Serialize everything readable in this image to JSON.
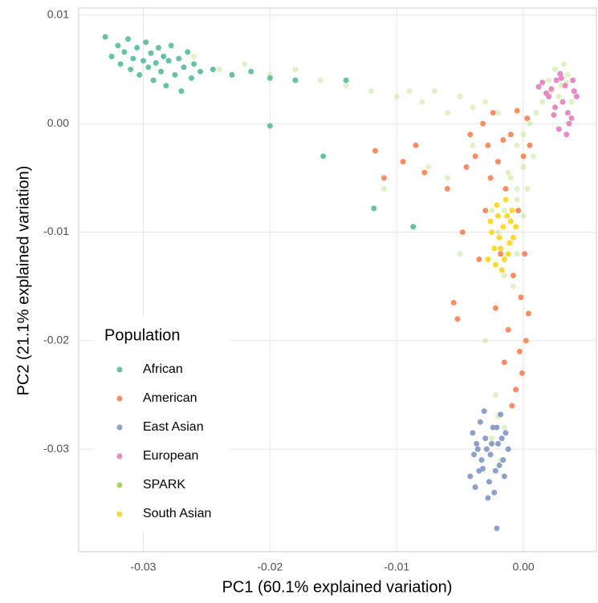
{
  "chart_data": {
    "type": "scatter",
    "x_label": "PC1 (60.1% explained variation)",
    "y_label": "PC2 (21.1% explained variation)",
    "xlim": [
      -0.0351,
      0.00576
    ],
    "ylim": [
      -0.03945,
      0.01066
    ],
    "xticks": [
      -0.03,
      -0.02,
      -0.01,
      {
        "value": 0,
        "label": "0.00"
      }
    ],
    "yticks": [
      0.01,
      {
        "value": 0,
        "label": "0.00"
      },
      -0.01,
      -0.02,
      -0.03
    ],
    "grid": true,
    "legend_title": "Population",
    "legend_position": "bottom-left",
    "series": [
      {
        "name": "African",
        "color": "#66c2a5",
        "alpha": 1,
        "x": [
          -0.033,
          -0.0325,
          -0.032,
          -0.0318,
          -0.0315,
          -0.0312,
          -0.031,
          -0.0308,
          -0.0305,
          -0.0303,
          -0.03,
          -0.0298,
          -0.0296,
          -0.0294,
          -0.0292,
          -0.029,
          -0.0288,
          -0.0286,
          -0.0284,
          -0.0282,
          -0.028,
          -0.0278,
          -0.0275,
          -0.0272,
          -0.027,
          -0.0268,
          -0.0265,
          -0.0262,
          -0.026,
          -0.0255,
          -0.0245,
          -0.023,
          -0.0215,
          -0.02,
          -0.018,
          -0.014,
          -0.02,
          -0.0158,
          -0.0118,
          -0.0087
        ],
        "values": [
          0.008,
          0.0062,
          0.0072,
          0.0055,
          0.0066,
          0.0078,
          0.005,
          0.006,
          0.007,
          0.0045,
          0.0058,
          0.0075,
          0.0052,
          0.0065,
          0.004,
          0.0056,
          0.007,
          0.0048,
          0.0062,
          0.0035,
          0.0058,
          0.0072,
          0.0045,
          0.006,
          0.003,
          0.0052,
          0.0066,
          0.0042,
          0.0055,
          0.0048,
          0.005,
          0.0045,
          0.0048,
          0.0042,
          0.004,
          0.004,
          -0.0002,
          -0.003,
          -0.0078,
          -0.0095
        ]
      },
      {
        "name": "American",
        "color": "#fc8d62",
        "alpha": 1,
        "x": [
          -0.0117,
          -0.011,
          -0.0095,
          -0.0085,
          -0.0078,
          -0.006,
          -0.0055,
          -0.0052,
          -0.0048,
          -0.0045,
          -0.0042,
          -0.0038,
          -0.0035,
          -0.0032,
          -0.003,
          -0.0028,
          -0.0026,
          -0.0024,
          -0.0022,
          -0.002,
          -0.0018,
          -0.0016,
          -0.0014,
          -0.0012,
          -0.001,
          -0.0008,
          -0.0006,
          -0.0005,
          -0.0004,
          -0.0003,
          -0.0002,
          -0.0001,
          0.0,
          0.0001,
          0.0002,
          0.0003,
          0.0004,
          -0.0015,
          -0.0009,
          0.0005
        ],
        "values": [
          -0.0025,
          -0.005,
          -0.0035,
          -0.002,
          -0.0045,
          -0.006,
          -0.0165,
          -0.018,
          -0.01,
          -0.004,
          -0.001,
          -0.003,
          -0.0125,
          0.0,
          -0.008,
          -0.002,
          -0.005,
          0.001,
          -0.017,
          -0.0035,
          -0.012,
          -0.0015,
          -0.006,
          -0.019,
          -0.001,
          -0.014,
          -0.0245,
          0.0012,
          -0.008,
          -0.021,
          -0.016,
          -0.023,
          -0.003,
          -0.012,
          -0.02,
          0.0005,
          -0.0175,
          -0.022,
          -0.026,
          -0.002
        ]
      },
      {
        "name": "East Asian",
        "color": "#8da0cb",
        "alpha": 1,
        "x": [
          -0.0042,
          -0.004,
          -0.0038,
          -0.0036,
          -0.0034,
          -0.0032,
          -0.003,
          -0.0028,
          -0.0026,
          -0.0024,
          -0.0022,
          -0.002,
          -0.0018,
          -0.0016,
          -0.0014,
          -0.0012,
          -0.0039,
          -0.0035,
          -0.0031,
          -0.0027,
          -0.0025,
          -0.0023,
          -0.0019,
          -0.0017,
          -0.0033,
          -0.0029,
          -0.0021,
          -0.0015,
          -0.0037,
          -0.0021
        ],
        "values": [
          -0.0325,
          -0.0285,
          -0.0335,
          -0.03,
          -0.0275,
          -0.0318,
          -0.029,
          -0.0345,
          -0.0305,
          -0.028,
          -0.032,
          -0.0295,
          -0.0268,
          -0.031,
          -0.0285,
          -0.03,
          -0.0305,
          -0.032,
          -0.0265,
          -0.033,
          -0.0295,
          -0.034,
          -0.0315,
          -0.029,
          -0.031,
          -0.03,
          -0.028,
          -0.0325,
          -0.0295,
          -0.0373
        ]
      },
      {
        "name": "European",
        "color": "#e78ac3",
        "alpha": 1,
        "x": [
          0.0015,
          0.002,
          0.0025,
          0.003,
          0.0035,
          0.004,
          0.0028,
          0.0033,
          0.0038,
          0.0022,
          0.0018,
          0.0026,
          0.0031,
          0.0036,
          0.0042,
          0.0012,
          0.0024,
          0.0029,
          0.0034,
          0.0039
        ],
        "values": [
          0.0038,
          0.0025,
          0.0015,
          0.0042,
          0.001,
          0.003,
          -0.0005,
          0.0035,
          0.0005,
          0.0032,
          0.0028,
          0.004,
          0.002,
          0.0,
          0.0025,
          0.0034,
          0.0008,
          0.0046,
          -0.001,
          0.004
        ]
      },
      {
        "name": "SPARK",
        "color": "#a6d854",
        "alpha": 0.35,
        "x": [
          -0.028,
          -0.026,
          -0.024,
          -0.022,
          -0.02,
          -0.018,
          -0.016,
          -0.014,
          -0.012,
          -0.01,
          -0.009,
          -0.008,
          -0.007,
          -0.006,
          -0.005,
          -0.004,
          -0.003,
          -0.002,
          -0.011,
          -0.0075,
          0.002,
          0.0025,
          0.003,
          0.0035,
          0.004,
          0.0028,
          0.0032,
          0.0038,
          0.0022,
          0.0034,
          -0.0005,
          0.0,
          0.0005,
          0.001,
          0.0015,
          -0.001,
          -0.0005,
          0.0,
          -0.0015,
          -0.001,
          -0.0005,
          -0.002,
          -0.001,
          -0.0005,
          0.0,
          -0.0015,
          -0.0025,
          -0.0008,
          -0.0012,
          0.0003,
          -0.002,
          -0.0025,
          -0.0018,
          -0.0022,
          -0.0015,
          -0.003,
          -0.006,
          -0.004,
          -0.005,
          0.0008
        ],
        "values": [
          0.0058,
          0.0062,
          0.005,
          0.0055,
          0.0045,
          0.005,
          0.004,
          0.0035,
          0.003,
          0.0025,
          0.003,
          0.002,
          0.003,
          0.001,
          0.0025,
          0.0015,
          0.002,
          0.001,
          -0.006,
          -0.004,
          0.004,
          0.005,
          0.0035,
          0.0045,
          0.003,
          0.0025,
          0.0055,
          0.002,
          0.003,
          0.0038,
          -0.002,
          -0.001,
          0.0,
          0.001,
          0.002,
          -0.005,
          -0.006,
          -0.004,
          -0.008,
          -0.009,
          -0.007,
          -0.01,
          -0.011,
          -0.012,
          -0.0085,
          -0.014,
          -0.008,
          -0.015,
          -0.0045,
          -0.006,
          -0.027,
          -0.029,
          -0.031,
          -0.025,
          -0.028,
          -0.02,
          -0.005,
          -0.002,
          -0.012,
          -0.003
        ]
      },
      {
        "name": "South Asian",
        "color": "#ffd92f",
        "alpha": 1,
        "x": [
          -0.0028,
          -0.0025,
          -0.0022,
          -0.002,
          -0.0018,
          -0.0016,
          -0.0014,
          -0.0012,
          -0.001,
          -0.0008,
          -0.0026,
          -0.0023,
          -0.0021,
          -0.0019,
          -0.0015,
          -0.0013,
          -0.0011,
          -0.0009,
          -0.0006,
          -0.0017
        ],
        "values": [
          -0.0125,
          -0.01,
          -0.013,
          -0.0085,
          -0.0115,
          -0.0095,
          -0.007,
          -0.012,
          -0.009,
          -0.0105,
          -0.009,
          -0.0115,
          -0.0075,
          -0.0105,
          -0.0125,
          -0.0085,
          -0.011,
          -0.008,
          -0.0095,
          -0.0135
        ]
      }
    ]
  }
}
